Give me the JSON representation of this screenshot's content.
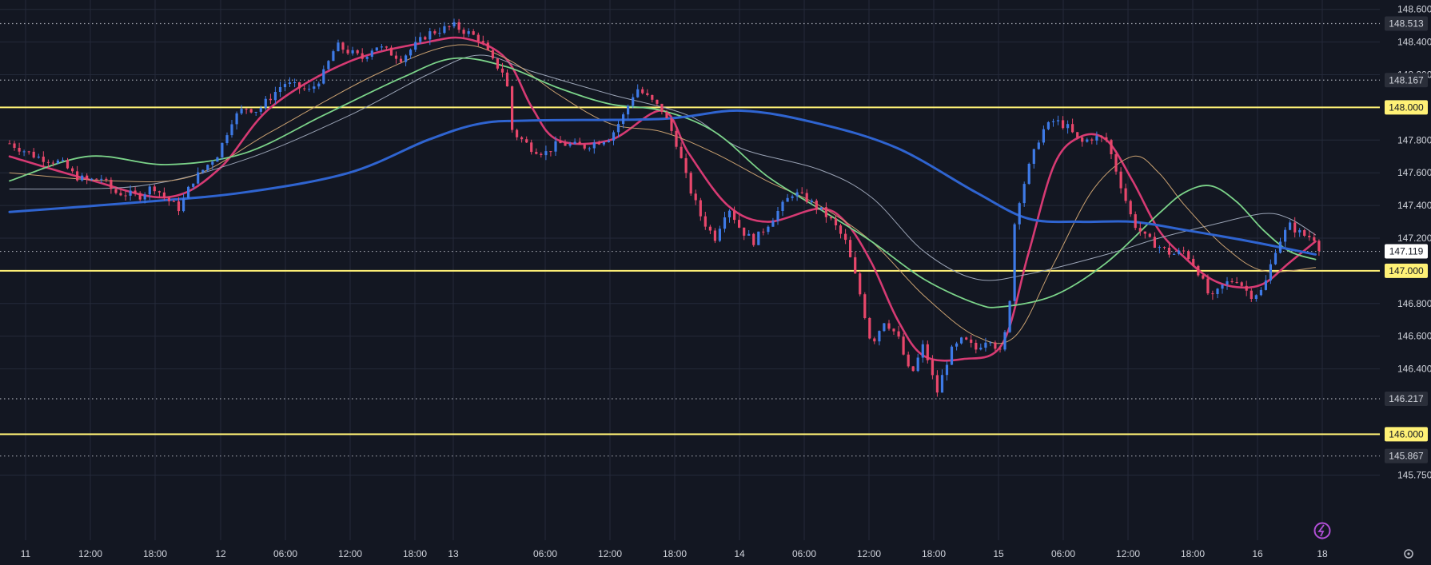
{
  "chart_data": {
    "type": "candlestick",
    "title": "",
    "xlabel": "",
    "ylabel": "",
    "ylim": [
      145.7,
      148.62
    ],
    "grid": true,
    "colors": {
      "background": "#131722",
      "grid": "#242a3a",
      "up": "#3e7ae6",
      "down": "#e8476b",
      "level": "#fff176",
      "dotted_level": "#b2b5be",
      "current_price_tag": "#ffffff",
      "axis_text": "#d1d4dc"
    },
    "x_tick_labels": [
      "11",
      "12:00",
      "18:00",
      "12",
      "06:00",
      "12:00",
      "18:00",
      "13",
      "06:00",
      "12:00",
      "18:00",
      "14",
      "06:00",
      "12:00",
      "18:00",
      "15",
      "06:00",
      "12:00",
      "18:00",
      "16",
      "18"
    ],
    "y_tick_labels": [
      "148.600",
      "148.400",
      "148.200",
      "147.800",
      "147.600",
      "147.400",
      "147.200",
      "146.800",
      "146.600",
      "146.400",
      "145.750"
    ],
    "horizontal_levels": [
      148.0,
      147.0,
      146.0
    ],
    "dotted_levels": [
      148.513,
      148.167,
      147.119,
      146.217,
      145.867
    ],
    "price_tags": [
      {
        "label": "148.513",
        "style": "plain"
      },
      {
        "label": "148.167",
        "style": "plain"
      },
      {
        "label": "148.000",
        "style": "yellow"
      },
      {
        "label": "147.119",
        "style": "white"
      },
      {
        "label": "147.000",
        "style": "yellow"
      },
      {
        "label": "146.217",
        "style": "plain"
      },
      {
        "label": "146.000",
        "style": "yellow"
      },
      {
        "label": "145.867",
        "style": "plain"
      }
    ],
    "price_path": [
      [
        0,
        147.78
      ],
      [
        2,
        147.7
      ],
      [
        4,
        147.66
      ],
      [
        5,
        147.58
      ],
      [
        6,
        147.55
      ],
      [
        7,
        147.57
      ],
      [
        8,
        147.48
      ],
      [
        10,
        147.46
      ],
      [
        11,
        147.52
      ],
      [
        12,
        147.44
      ],
      [
        13,
        147.38
      ],
      [
        14,
        147.55
      ],
      [
        16,
        147.72
      ],
      [
        17,
        147.92
      ],
      [
        18,
        148.0
      ],
      [
        19,
        147.98
      ],
      [
        21,
        148.15
      ],
      [
        23,
        148.1
      ],
      [
        24,
        148.2
      ],
      [
        25,
        148.38
      ],
      [
        27,
        148.3
      ],
      [
        28,
        148.38
      ],
      [
        30,
        148.3
      ],
      [
        32,
        148.45
      ],
      [
        34,
        148.5
      ],
      [
        36,
        148.42
      ],
      [
        37,
        148.28
      ],
      [
        38,
        148.2
      ],
      [
        38.5,
        147.85
      ],
      [
        40,
        147.75
      ],
      [
        41,
        147.72
      ],
      [
        42,
        147.78
      ],
      [
        44,
        147.76
      ],
      [
        46,
        147.82
      ],
      [
        47,
        147.95
      ],
      [
        48,
        148.12
      ],
      [
        49,
        148.05
      ],
      [
        50,
        147.98
      ],
      [
        51,
        147.8
      ],
      [
        52,
        147.52
      ],
      [
        53,
        147.32
      ],
      [
        54,
        147.2
      ],
      [
        55,
        147.4
      ],
      [
        56,
        147.25
      ],
      [
        57,
        147.18
      ],
      [
        58,
        147.28
      ],
      [
        59,
        147.38
      ],
      [
        60,
        147.48
      ],
      [
        61,
        147.44
      ],
      [
        62,
        147.38
      ],
      [
        63,
        147.3
      ],
      [
        64,
        147.18
      ],
      [
        65,
        146.9
      ],
      [
        66,
        146.55
      ],
      [
        67,
        146.7
      ],
      [
        68,
        146.6
      ],
      [
        69,
        146.35
      ],
      [
        70,
        146.55
      ],
      [
        71,
        146.25
      ],
      [
        72,
        146.5
      ],
      [
        73,
        146.58
      ],
      [
        74,
        146.52
      ],
      [
        75,
        146.6
      ],
      [
        76,
        146.48
      ],
      [
        76.7,
        146.9
      ],
      [
        77,
        147.35
      ],
      [
        78,
        147.62
      ],
      [
        79,
        147.85
      ],
      [
        80,
        147.92
      ],
      [
        81,
        147.88
      ],
      [
        82,
        147.78
      ],
      [
        83,
        147.82
      ],
      [
        84,
        147.8
      ],
      [
        85,
        147.55
      ],
      [
        86,
        147.3
      ],
      [
        87,
        147.2
      ],
      [
        88,
        147.15
      ],
      [
        89,
        147.1
      ],
      [
        90,
        147.12
      ],
      [
        91,
        147.0
      ],
      [
        92,
        146.82
      ],
      [
        93,
        146.92
      ],
      [
        94,
        146.95
      ],
      [
        95,
        146.85
      ],
      [
        96,
        146.88
      ],
      [
        97,
        147.15
      ],
      [
        98,
        147.28
      ],
      [
        99,
        147.22
      ],
      [
        100,
        147.2
      ],
      [
        100.4,
        147.12
      ]
    ],
    "moving_averages": [
      {
        "color": "#d63a73",
        "width": 2.6,
        "points": [
          [
            0,
            147.7
          ],
          [
            6,
            147.56
          ],
          [
            12,
            147.45
          ],
          [
            16,
            147.62
          ],
          [
            20,
            148.0
          ],
          [
            26,
            148.28
          ],
          [
            32,
            148.4
          ],
          [
            35,
            148.42
          ],
          [
            38,
            148.3
          ],
          [
            40,
            148.0
          ],
          [
            42,
            147.8
          ],
          [
            46,
            147.8
          ],
          [
            50,
            147.98
          ],
          [
            52,
            147.72
          ],
          [
            55,
            147.4
          ],
          [
            58,
            147.3
          ],
          [
            62,
            147.38
          ],
          [
            64,
            147.3
          ],
          [
            66,
            147.05
          ],
          [
            68,
            146.7
          ],
          [
            70,
            146.48
          ],
          [
            73,
            146.46
          ],
          [
            76,
            146.55
          ],
          [
            78,
            147.1
          ],
          [
            80,
            147.65
          ],
          [
            82,
            147.82
          ],
          [
            84,
            147.8
          ],
          [
            86,
            147.55
          ],
          [
            88,
            147.25
          ],
          [
            90,
            147.08
          ],
          [
            92,
            146.95
          ],
          [
            94,
            146.9
          ],
          [
            96,
            146.92
          ],
          [
            98,
            147.05
          ],
          [
            100,
            147.18
          ]
        ]
      },
      {
        "color": "#9aa3b5",
        "width": 1,
        "points": [
          [
            0,
            147.5
          ],
          [
            10,
            147.52
          ],
          [
            18,
            147.68
          ],
          [
            26,
            147.95
          ],
          [
            32,
            148.2
          ],
          [
            36,
            148.32
          ],
          [
            40,
            148.22
          ],
          [
            46,
            148.08
          ],
          [
            52,
            147.95
          ],
          [
            56,
            147.75
          ],
          [
            62,
            147.62
          ],
          [
            66,
            147.45
          ],
          [
            70,
            147.12
          ],
          [
            74,
            146.95
          ],
          [
            78,
            146.98
          ],
          [
            84,
            147.1
          ],
          [
            88,
            147.2
          ],
          [
            92,
            147.28
          ],
          [
            96,
            147.35
          ],
          [
            98,
            147.32
          ],
          [
            100,
            147.22
          ]
        ]
      },
      {
        "color": "#c9a070",
        "width": 1,
        "points": [
          [
            0,
            147.6
          ],
          [
            8,
            147.55
          ],
          [
            14,
            147.58
          ],
          [
            20,
            147.85
          ],
          [
            28,
            148.2
          ],
          [
            34,
            148.38
          ],
          [
            38,
            148.3
          ],
          [
            42,
            148.08
          ],
          [
            46,
            147.9
          ],
          [
            50,
            147.85
          ],
          [
            54,
            147.72
          ],
          [
            58,
            147.55
          ],
          [
            62,
            147.4
          ],
          [
            66,
            147.18
          ],
          [
            70,
            146.85
          ],
          [
            74,
            146.6
          ],
          [
            77,
            146.6
          ],
          [
            80,
            147.05
          ],
          [
            83,
            147.5
          ],
          [
            86,
            147.7
          ],
          [
            88,
            147.6
          ],
          [
            90,
            147.4
          ],
          [
            93,
            147.15
          ],
          [
            96,
            147.0
          ],
          [
            100,
            147.02
          ]
        ]
      },
      {
        "color": "#7bd389",
        "width": 1.8,
        "points": [
          [
            0,
            147.55
          ],
          [
            6,
            147.7
          ],
          [
            12,
            147.65
          ],
          [
            18,
            147.72
          ],
          [
            24,
            147.95
          ],
          [
            30,
            148.18
          ],
          [
            34,
            148.3
          ],
          [
            38,
            148.25
          ],
          [
            42,
            148.12
          ],
          [
            46,
            148.02
          ],
          [
            50,
            147.98
          ],
          [
            54,
            147.85
          ],
          [
            58,
            147.58
          ],
          [
            62,
            147.38
          ],
          [
            66,
            147.18
          ],
          [
            70,
            146.95
          ],
          [
            74,
            146.8
          ],
          [
            76,
            146.78
          ],
          [
            80,
            146.85
          ],
          [
            84,
            147.05
          ],
          [
            88,
            147.35
          ],
          [
            90,
            147.48
          ],
          [
            92,
            147.52
          ],
          [
            94,
            147.42
          ],
          [
            96,
            147.25
          ],
          [
            98,
            147.12
          ],
          [
            100,
            147.07
          ]
        ]
      },
      {
        "color": "#2f64d0",
        "width": 3,
        "points": [
          [
            0,
            147.36
          ],
          [
            10,
            147.42
          ],
          [
            18,
            147.48
          ],
          [
            26,
            147.6
          ],
          [
            32,
            147.8
          ],
          [
            36,
            147.9
          ],
          [
            40,
            147.92
          ],
          [
            50,
            147.93
          ],
          [
            56,
            147.98
          ],
          [
            62,
            147.9
          ],
          [
            68,
            147.75
          ],
          [
            74,
            147.48
          ],
          [
            78,
            147.32
          ],
          [
            82,
            147.3
          ],
          [
            86,
            147.3
          ],
          [
            90,
            147.25
          ],
          [
            95,
            147.18
          ],
          [
            100,
            147.1
          ]
        ]
      }
    ]
  }
}
